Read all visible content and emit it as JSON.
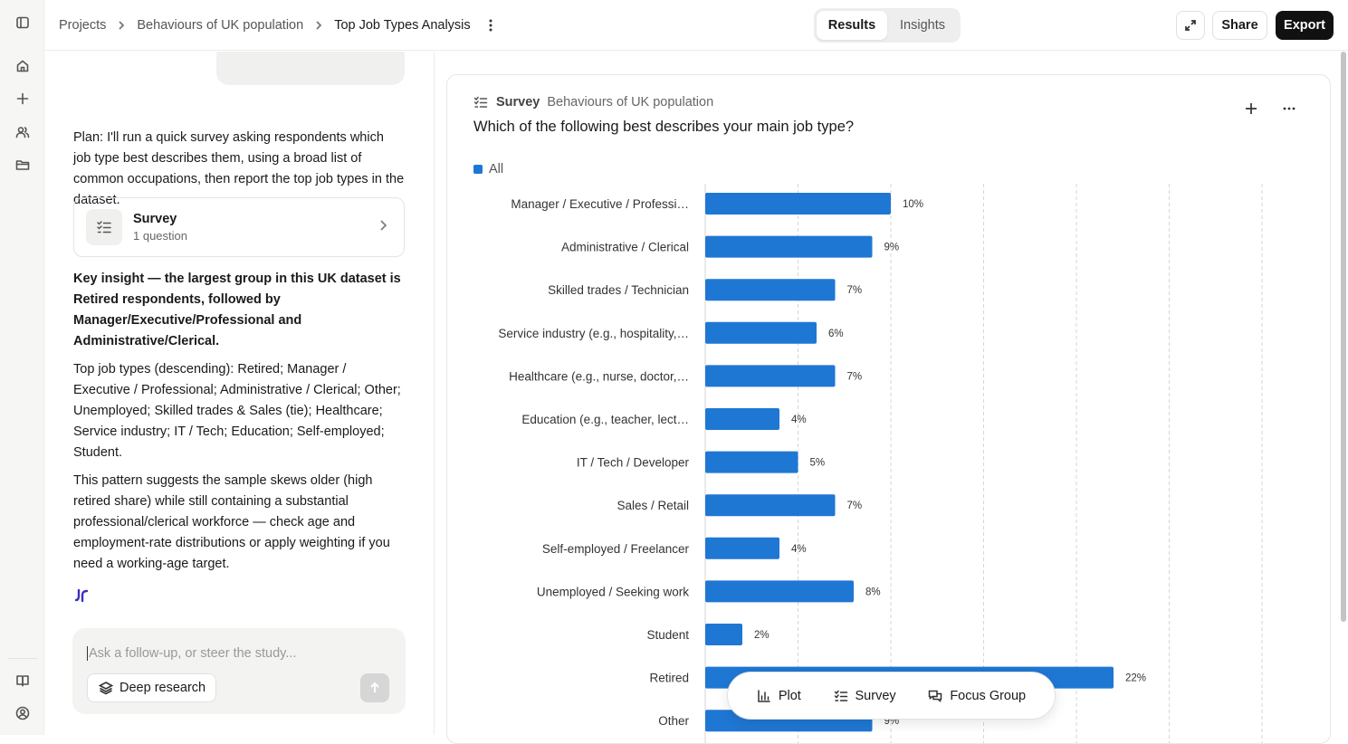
{
  "breadcrumb": {
    "items": [
      "Projects",
      "Behaviours of UK population",
      "Top Job Types Analysis"
    ]
  },
  "view_toggle": {
    "options": [
      "Results",
      "Insights"
    ],
    "selected": "Results"
  },
  "header_actions": {
    "share": "Share",
    "export": "Export"
  },
  "chat": {
    "plan": "Plan: I'll run a quick survey asking respondents which job type best describes them, using a broad list of common occupations, then report the top job types in the dataset.",
    "card": {
      "title": "Survey",
      "subtitle": "1 question"
    },
    "insight_bold": "Key insight — the largest group in this UK dataset is Retired respondents, followed by Manager/Executive/Professional and Administrative/Clerical.",
    "para1": "Top job types (descending): Retired; Manager / Executive / Professional; Administrative / Clerical; Other; Unemployed; Skilled trades & Sales (tie); Healthcare; Service industry; IT / Tech; Education; Self-employed; Student.",
    "para2": "This pattern suggests the sample skews older (high retired share) while still containing a substantial professional/clerical workforce — check age and employment-rate distributions or apply weighting if you need a working-age target.",
    "input_placeholder": "Ask a follow-up, or steer the study...",
    "deep_research": "Deep research"
  },
  "results": {
    "type_label": "Survey",
    "project": "Behaviours of UK population",
    "question": "Which of the following best describes your main job type?"
  },
  "chart_data": {
    "type": "bar",
    "orientation": "horizontal",
    "legend": [
      "All"
    ],
    "legend_position": "top-left",
    "grid": true,
    "xlim": [
      0,
      30
    ],
    "color": "#1f77d4",
    "categories": [
      "Manager / Executive / Professi…",
      "Administrative / Clerical",
      "Skilled trades / Technician",
      "Service industry (e.g., hospitality,…",
      "Healthcare (e.g., nurse, doctor,…",
      "Education (e.g., teacher, lect…",
      "IT / Tech / Developer",
      "Sales / Retail",
      "Self-employed / Freelancer",
      "Unemployed / Seeking work",
      "Student",
      "Retired",
      "Other"
    ],
    "series": [
      {
        "name": "All",
        "values": [
          10,
          9,
          7,
          6,
          7,
          4,
          5,
          7,
          4,
          8,
          2,
          22,
          9
        ]
      }
    ],
    "value_labels": [
      "10%",
      "9%",
      "7%",
      "6%",
      "7%",
      "4%",
      "5%",
      "7%",
      "4%",
      "8%",
      "2%",
      "22%",
      "9%"
    ]
  },
  "toolbar": {
    "plot": "Plot",
    "survey": "Survey",
    "focus_group": "Focus Group"
  }
}
